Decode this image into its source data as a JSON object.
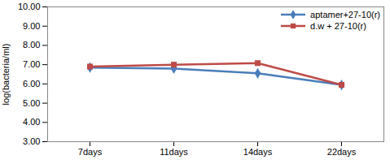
{
  "chart_data": {
    "type": "line",
    "y_label": "log(bacteria/ml)",
    "categories": [
      "7days",
      "11days",
      "14days",
      "22days"
    ],
    "series": [
      {
        "name": "aptamer+27-10(r)",
        "color": "#4a7ebb",
        "marker": "diamond",
        "values": [
          6.85,
          6.8,
          6.55,
          5.95
        ]
      },
      {
        "name": "d.w + 27-10(r)",
        "color": "#be4b48",
        "marker": "square",
        "values": [
          6.9,
          7.0,
          7.08,
          5.95
        ]
      }
    ],
    "ylim": [
      3,
      10
    ],
    "yticks": [
      {
        "value": 3,
        "label": "3.00"
      },
      {
        "value": 4,
        "label": "4.00"
      },
      {
        "value": 5,
        "label": "5.00"
      },
      {
        "value": 6,
        "label": "6.00"
      },
      {
        "value": 7,
        "label": "7.00"
      },
      {
        "value": 8,
        "label": "8.00"
      },
      {
        "value": 9,
        "label": "9.00"
      },
      {
        "value": 10,
        "label": "10.00"
      }
    ],
    "grid": false,
    "legend": "top-right"
  }
}
